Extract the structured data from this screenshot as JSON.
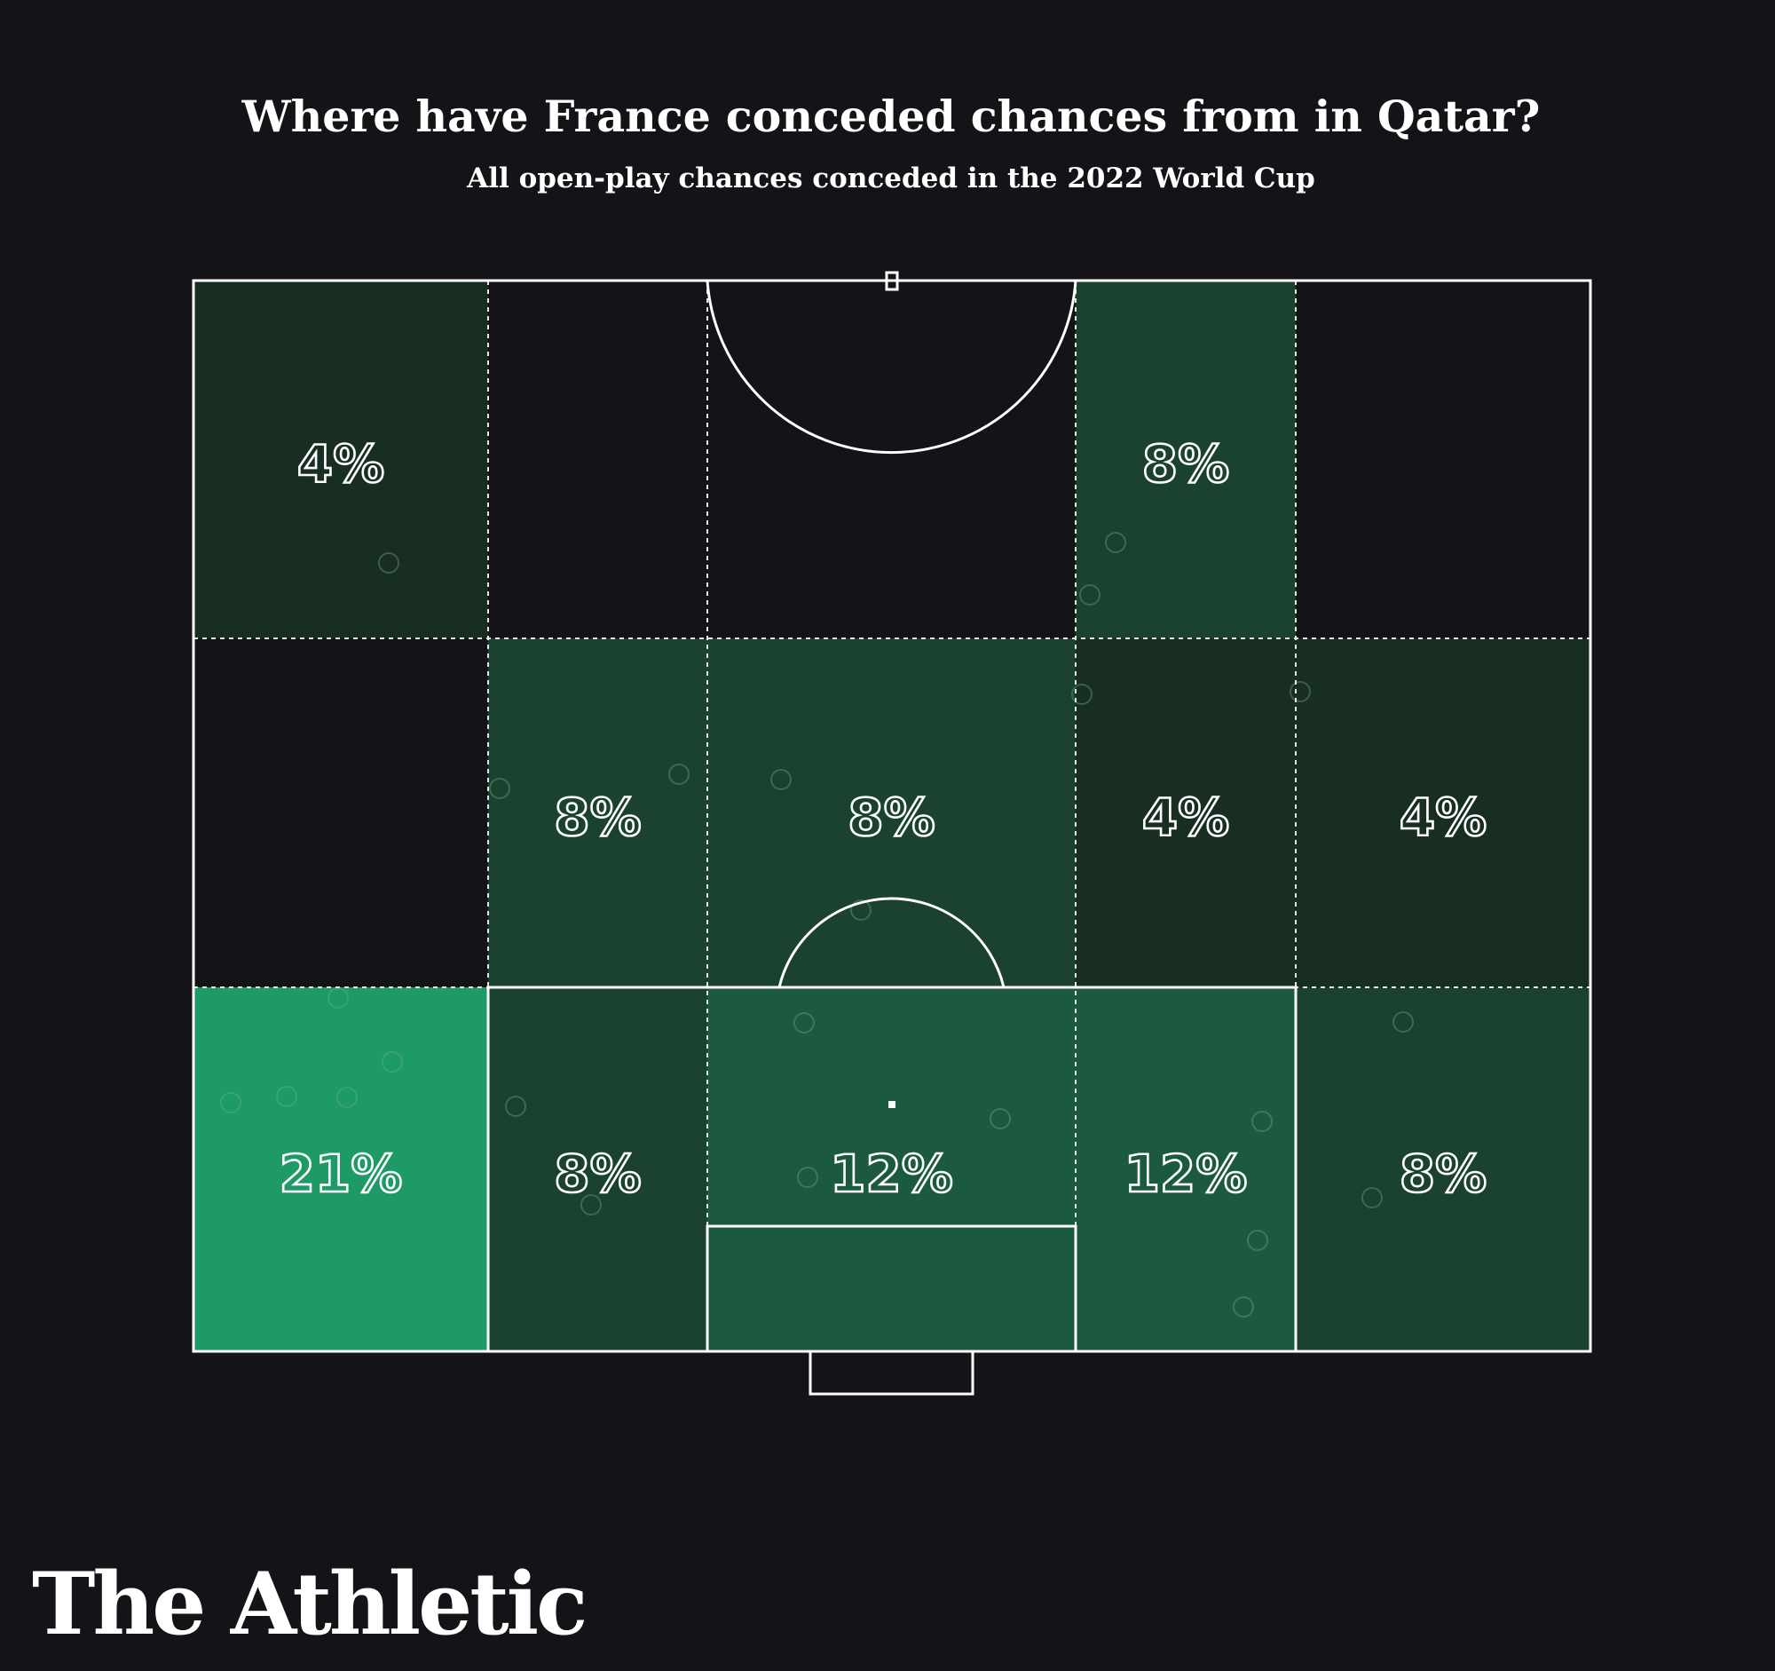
{
  "title": "Where have France conceded chances from in Qatar?",
  "subtitle": "All open-play chances conceded in the 2022 World Cup",
  "brand": "The Athletic",
  "colors": {
    "background": "#141317",
    "pitch_lines": "#ffffff",
    "zone_scale_low": "#18211b",
    "zone_scale_high": "#1e9a66"
  },
  "chart_data": {
    "type": "heatmap",
    "title": "Where have France conceded chances from in Qatar?",
    "subtitle": "All open-play chances conceded in the 2022 World Cup",
    "value_unit": "%",
    "columns": 5,
    "rows": 3,
    "zones": [
      {
        "row": 0,
        "col": 0,
        "value": 4,
        "label": "4%"
      },
      {
        "row": 0,
        "col": 1,
        "value": 0,
        "label": ""
      },
      {
        "row": 0,
        "col": 2,
        "value": 0,
        "label": ""
      },
      {
        "row": 0,
        "col": 3,
        "value": 8,
        "label": "8%"
      },
      {
        "row": 0,
        "col": 4,
        "value": 0,
        "label": ""
      },
      {
        "row": 1,
        "col": 0,
        "value": 0,
        "label": ""
      },
      {
        "row": 1,
        "col": 1,
        "value": 8,
        "label": "8%"
      },
      {
        "row": 1,
        "col": 2,
        "value": 8,
        "label": "8%"
      },
      {
        "row": 1,
        "col": 3,
        "value": 4,
        "label": "4%"
      },
      {
        "row": 1,
        "col": 4,
        "value": 4,
        "label": "4%"
      },
      {
        "row": 2,
        "col": 0,
        "value": 21,
        "label": "21%"
      },
      {
        "row": 2,
        "col": 1,
        "value": 8,
        "label": "8%"
      },
      {
        "row": 2,
        "col": 2,
        "value": 12,
        "label": "12%"
      },
      {
        "row": 2,
        "col": 3,
        "value": 12,
        "label": "12%"
      },
      {
        "row": 2,
        "col": 4,
        "value": 8,
        "label": "8%"
      }
    ]
  }
}
